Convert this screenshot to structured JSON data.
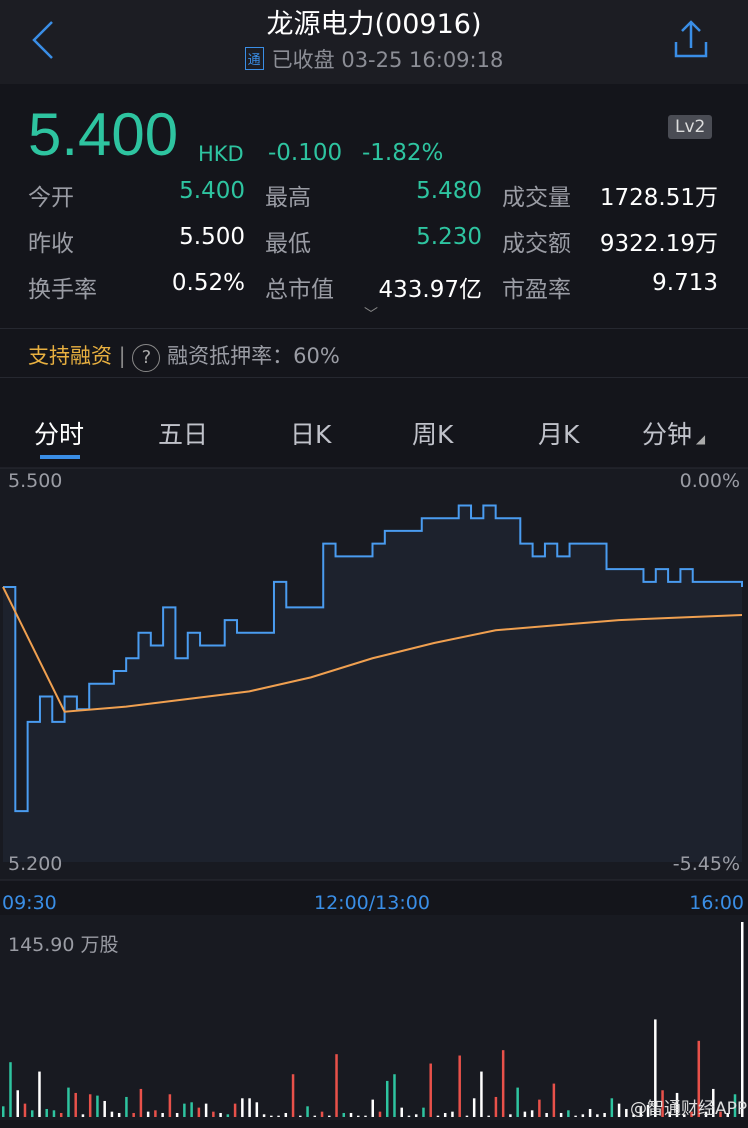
{
  "header": {
    "title": "龙源电力(00916)",
    "badge": "通",
    "status": "已收盘 03-25 16:09:18",
    "back_icon": "chevron-left-icon",
    "share_icon": "share-icon"
  },
  "quote": {
    "price": "5.400",
    "currency": "HKD",
    "change": "-0.100",
    "change_pct": "-1.82%",
    "level": "Lv2",
    "rows": [
      [
        {
          "label": "今开",
          "value": "5.400"
        },
        {
          "label": "最高",
          "value": "5.480"
        },
        {
          "label": "成交量",
          "value": "1728.51万"
        }
      ],
      [
        {
          "label": "昨收",
          "value": "5.500"
        },
        {
          "label": "最低",
          "value": "5.230"
        },
        {
          "label": "成交额",
          "value": "9322.19万"
        }
      ],
      [
        {
          "label": "换手率",
          "value": "0.52%"
        },
        {
          "label": "总市值",
          "value": "433.97亿"
        },
        {
          "label": "市盈率",
          "value": "9.713"
        }
      ]
    ]
  },
  "margin": {
    "support": "支持融资",
    "help_icon": "question-icon",
    "ratio": "融资抵押率：60%"
  },
  "tabs": [
    "分时",
    "五日",
    "日K",
    "周K",
    "月K",
    "分钟"
  ],
  "colors": {
    "up": "#e8514a",
    "down": "#2ec4a0",
    "flat": "#ffffff",
    "price_line": "#4a9cf0",
    "avg_line": "#f0a050",
    "accent": "#3a8ee6"
  },
  "chart_data": {
    "type": "line",
    "y_left": {
      "max": "5.500",
      "min": "5.200"
    },
    "y_right": {
      "max": "0.00%",
      "min": "-5.45%"
    },
    "ylim": [
      5.2,
      5.5
    ],
    "x_ticks": [
      "09:30",
      "12:00/13:00",
      "16:00"
    ],
    "price": [
      5.416,
      5.24,
      5.31,
      5.33,
      5.31,
      5.33,
      5.32,
      5.34,
      5.34,
      5.35,
      5.36,
      5.38,
      5.37,
      5.4,
      5.36,
      5.38,
      5.37,
      5.37,
      5.39,
      5.38,
      5.38,
      5.38,
      5.42,
      5.4,
      5.4,
      5.4,
      5.45,
      5.44,
      5.44,
      5.44,
      5.45,
      5.46,
      5.46,
      5.46,
      5.47,
      5.47,
      5.47,
      5.48,
      5.47,
      5.48,
      5.47,
      5.47,
      5.45,
      5.44,
      5.45,
      5.44,
      5.45,
      5.45,
      5.45,
      5.43,
      5.43,
      5.43,
      5.42,
      5.43,
      5.42,
      5.43,
      5.42,
      5.42,
      5.42,
      5.42,
      5.416
    ],
    "avg": [
      5.416,
      5.318,
      5.322,
      5.328,
      5.334,
      5.345,
      5.36,
      5.372,
      5.382,
      5.386,
      5.39,
      5.392,
      5.394
    ],
    "volume_max_label": "145.90 万股",
    "volume_max": 145.9,
    "volume": [
      [
        8,
        "g"
      ],
      [
        41,
        "g"
      ],
      [
        20,
        "w"
      ],
      [
        10,
        "r"
      ],
      [
        5,
        "g"
      ],
      [
        34,
        "w"
      ],
      [
        6,
        "g"
      ],
      [
        5,
        "g"
      ],
      [
        3,
        "r"
      ],
      [
        22,
        "g"
      ],
      [
        18,
        "r"
      ],
      [
        2,
        "w"
      ],
      [
        17,
        "r"
      ],
      [
        16,
        "g"
      ],
      [
        12,
        "w"
      ],
      [
        4,
        "w"
      ],
      [
        3,
        "w"
      ],
      [
        15,
        "g"
      ],
      [
        3,
        "r"
      ],
      [
        21,
        "r"
      ],
      [
        4,
        "w"
      ],
      [
        5,
        "r"
      ],
      [
        3,
        "w"
      ],
      [
        17,
        "r"
      ],
      [
        3,
        "w"
      ],
      [
        10,
        "g"
      ],
      [
        11,
        "g"
      ],
      [
        7,
        "r"
      ],
      [
        10,
        "w"
      ],
      [
        4,
        "r"
      ],
      [
        3,
        "w"
      ],
      [
        2,
        "g"
      ],
      [
        10,
        "r"
      ],
      [
        14,
        "w"
      ],
      [
        14,
        "w"
      ],
      [
        11,
        "w"
      ],
      [
        2,
        "w"
      ],
      [
        1,
        "w"
      ],
      [
        1,
        "w"
      ],
      [
        3,
        "w"
      ],
      [
        32,
        "r"
      ],
      [
        1,
        "w"
      ],
      [
        8,
        "g"
      ],
      [
        1,
        "w"
      ],
      [
        4,
        "r"
      ],
      [
        1,
        "w"
      ],
      [
        47,
        "r"
      ],
      [
        3,
        "g"
      ],
      [
        3,
        "w"
      ],
      [
        1,
        "w"
      ],
      [
        1,
        "w"
      ],
      [
        13,
        "w"
      ],
      [
        4,
        "r"
      ],
      [
        27,
        "g"
      ],
      [
        32,
        "g"
      ],
      [
        7,
        "w"
      ],
      [
        1,
        "w"
      ],
      [
        2,
        "w"
      ],
      [
        7,
        "g"
      ],
      [
        40,
        "r"
      ],
      [
        1,
        "w"
      ],
      [
        3,
        "w"
      ],
      [
        4,
        "w"
      ],
      [
        46,
        "r"
      ],
      [
        1,
        "w"
      ],
      [
        14,
        "w"
      ],
      [
        34,
        "w"
      ],
      [
        1,
        "w"
      ],
      [
        15,
        "r"
      ],
      [
        50,
        "r"
      ],
      [
        2,
        "w"
      ],
      [
        22,
        "g"
      ],
      [
        4,
        "w"
      ],
      [
        5,
        "w"
      ],
      [
        13,
        "r"
      ],
      [
        3,
        "w"
      ],
      [
        25,
        "r"
      ],
      [
        3,
        "w"
      ],
      [
        5,
        "g"
      ],
      [
        1,
        "w"
      ],
      [
        2,
        "w"
      ],
      [
        6,
        "w"
      ],
      [
        2,
        "w"
      ],
      [
        3,
        "w"
      ],
      [
        14,
        "g"
      ],
      [
        10,
        "w"
      ],
      [
        6,
        "w"
      ],
      [
        2,
        "w"
      ],
      [
        8,
        "w"
      ],
      [
        9,
        "w"
      ],
      [
        73,
        "w"
      ],
      [
        20,
        "r"
      ],
      [
        4,
        "w"
      ],
      [
        18,
        "w"
      ],
      [
        2,
        "w"
      ],
      [
        4,
        "r"
      ],
      [
        57,
        "r"
      ],
      [
        4,
        "w"
      ],
      [
        21,
        "w"
      ],
      [
        4,
        "r"
      ],
      [
        3,
        "w"
      ],
      [
        17,
        "g"
      ],
      [
        145.9,
        "w"
      ]
    ]
  }
}
